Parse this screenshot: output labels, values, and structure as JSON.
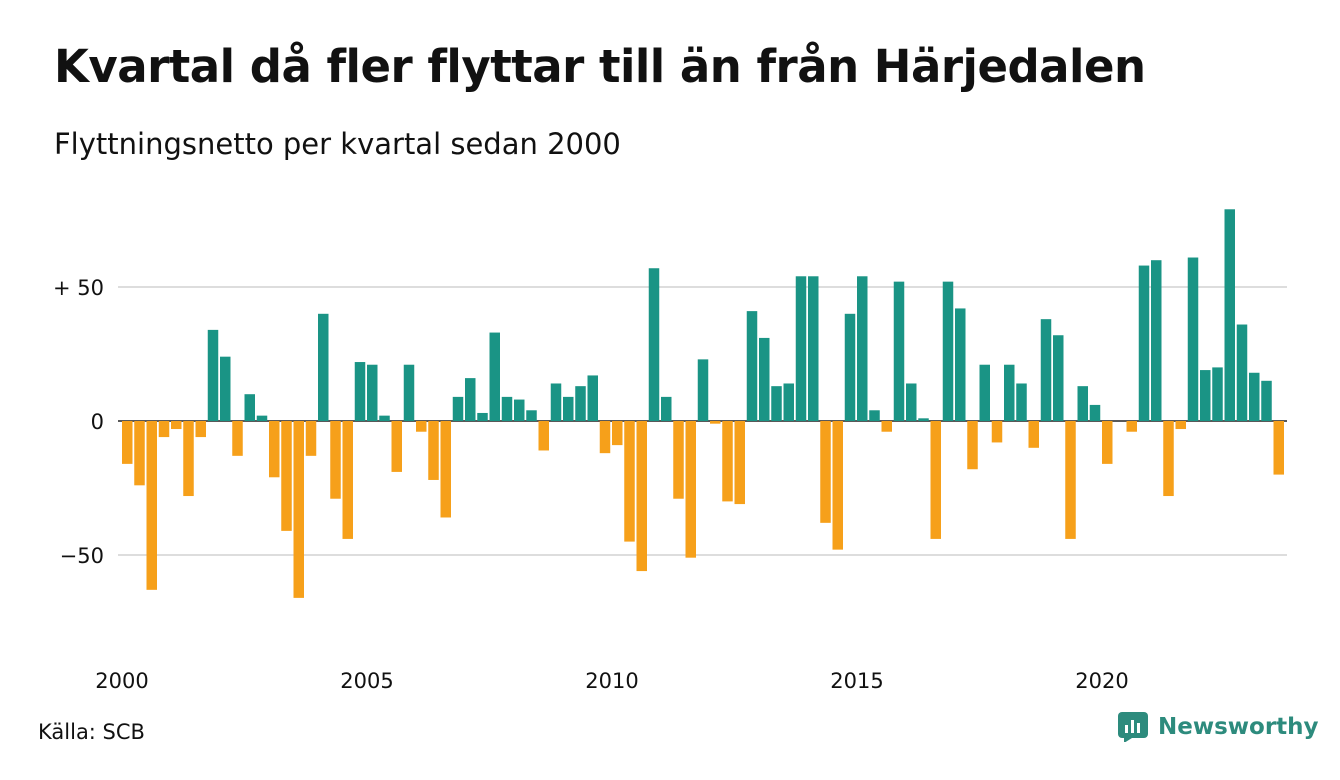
{
  "title": "Kvartal då fler flyttar till än från Härjedalen",
  "subtitle": "Flyttningsnetto per kvartal sedan 2000",
  "source": "Källa: SCB",
  "brand": "Newsworthy",
  "colors": {
    "positive": "#1a9485",
    "negative": "#f6a01a",
    "grid": "#dddddd",
    "brand": "#2d8b7d"
  },
  "chart_data": {
    "type": "bar",
    "start_year": 2000,
    "ylim": [
      -72,
      82
    ],
    "y_ticks": [
      {
        "value": 50,
        "label": "+ 50"
      },
      {
        "value": 0,
        "label": "0"
      },
      {
        "value": -50,
        "label": "−50"
      }
    ],
    "x_ticks": [
      {
        "value": 2000,
        "label": "2000"
      },
      {
        "value": 2005,
        "label": "2005"
      },
      {
        "value": 2010,
        "label": "2010"
      },
      {
        "value": 2015,
        "label": "2015"
      },
      {
        "value": 2020,
        "label": "2020"
      }
    ],
    "categories": [
      "2000 K1",
      "2000 K2",
      "2000 K3",
      "2000 K4",
      "2001 K1",
      "2001 K2",
      "2001 K3",
      "2001 K4",
      "2002 K1",
      "2002 K2",
      "2002 K3",
      "2002 K4",
      "2003 K1",
      "2003 K2",
      "2003 K3",
      "2003 K4",
      "2004 K1",
      "2004 K2",
      "2004 K3",
      "2004 K4",
      "2005 K1",
      "2005 K2",
      "2005 K3",
      "2005 K4",
      "2006 K1",
      "2006 K2",
      "2006 K3",
      "2006 K4",
      "2007 K1",
      "2007 K2",
      "2007 K3",
      "2007 K4",
      "2008 K1",
      "2008 K2",
      "2008 K3",
      "2008 K4",
      "2009 K1",
      "2009 K2",
      "2009 K3",
      "2009 K4",
      "2010 K1",
      "2010 K2",
      "2010 K3",
      "2010 K4",
      "2011 K1",
      "2011 K2",
      "2011 K3",
      "2011 K4",
      "2012 K1",
      "2012 K2",
      "2012 K3",
      "2012 K4",
      "2013 K1",
      "2013 K2",
      "2013 K3",
      "2013 K4",
      "2014 K1",
      "2014 K2",
      "2014 K3",
      "2014 K4",
      "2015 K1",
      "2015 K2",
      "2015 K3",
      "2015 K4",
      "2016 K1",
      "2016 K2",
      "2016 K3",
      "2016 K4",
      "2017 K1",
      "2017 K2",
      "2017 K3",
      "2017 K4",
      "2018 K1",
      "2018 K2",
      "2018 K3",
      "2018 K4",
      "2019 K1",
      "2019 K2",
      "2019 K3",
      "2019 K4",
      "2020 K1",
      "2020 K2",
      "2020 K3",
      "2020 K4",
      "2021 K1",
      "2021 K2",
      "2021 K3",
      "2021 K4",
      "2022 K1",
      "2022 K2",
      "2022 K3",
      "2022 K4",
      "2023 K1",
      "2023 K2",
      "2023 K3",
      "2023 K4"
    ],
    "values": [
      -16,
      -24,
      -63,
      -6,
      -3,
      -28,
      -6,
      34,
      24,
      -13,
      10,
      2,
      -21,
      -41,
      -66,
      -13,
      40,
      -29,
      -44,
      22,
      21,
      2,
      -19,
      21,
      -4,
      -22,
      -36,
      9,
      16,
      3,
      33,
      9,
      8,
      4,
      -11,
      14,
      9,
      13,
      17,
      -12,
      -9,
      -45,
      -56,
      57,
      9,
      -29,
      -51,
      23,
      -1,
      -30,
      -31,
      41,
      31,
      13,
      14,
      54,
      54,
      -38,
      -48,
      40,
      54,
      4,
      -4,
      52,
      14,
      1,
      -44,
      52,
      42,
      -18,
      21,
      -8,
      21,
      14,
      -10,
      38,
      32,
      -44,
      13,
      6,
      -16,
      0,
      -4,
      58,
      60,
      -28,
      -3,
      61,
      19,
      20,
      79,
      36,
      18,
      15,
      -20,
      0
    ]
  }
}
